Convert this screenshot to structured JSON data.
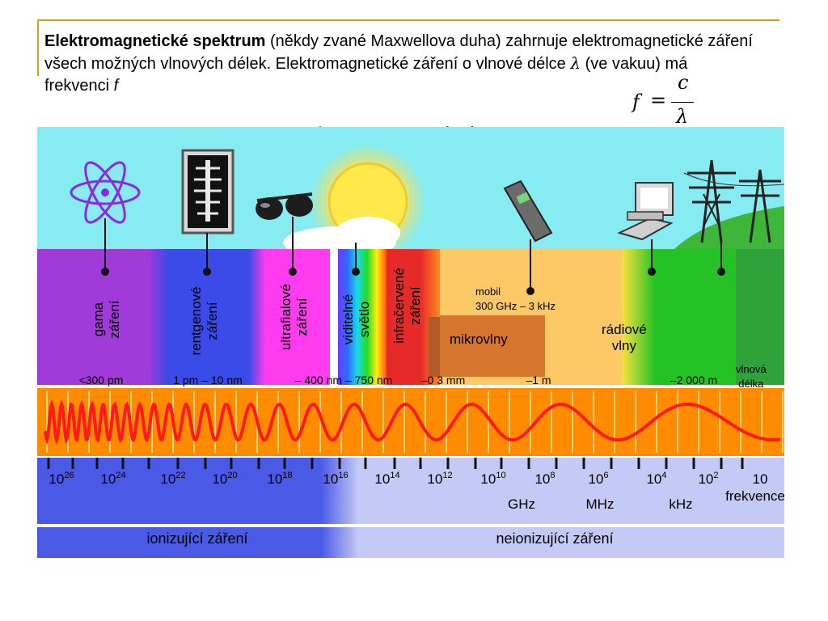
{
  "intro": {
    "term": "Elektromagnetické spektrum",
    "rest1": " (někdy zvané Maxwellova duha) zahrnuje elektromagnetické záření všech možných vlnových délek. Elektromagnetické záření o vlnové délce ",
    "lambda": "λ",
    "rest2": " (ve vakuu) má frekvenci ",
    "f": "f"
  },
  "formula": {
    "lhs": "f",
    "eq": "=",
    "num": "c",
    "den": "λ"
  },
  "subtitle": {
    "term": "Elektromagnetické spektrum",
    "rest": " dělíme podle vlnové délky:"
  },
  "bands": {
    "gamma": "gama\nzáření",
    "xray": "rentgenové\nzáření",
    "uv": "ultrafialové\nzáření",
    "visible": "viditelné\nsvětlo",
    "ir": "infračervené\nzáření",
    "mobile": "mobil\n300 GHz – 3 kHz",
    "microwave": "mikrovlny",
    "radio": "rádiové\nvlny",
    "wavelength_label": "vlnová\ndélka"
  },
  "wavelengths": [
    "<300 pm",
    "1 pm – 10 nm",
    "– 400 nm – 750 nm",
    "–0 3 mm",
    "–1 m",
    "–2 000 m"
  ],
  "frequencies": [
    {
      "base": "10",
      "exp": "26"
    },
    {
      "base": "10",
      "exp": "24"
    },
    {
      "base": "10",
      "exp": "22"
    },
    {
      "base": "10",
      "exp": "20"
    },
    {
      "base": "10",
      "exp": "18"
    },
    {
      "base": "10",
      "exp": "16"
    },
    {
      "base": "10",
      "exp": "14"
    },
    {
      "base": "10",
      "exp": "12"
    },
    {
      "base": "10",
      "exp": "10"
    },
    {
      "base": "10",
      "exp": "8"
    },
    {
      "base": "10",
      "exp": "6"
    },
    {
      "base": "10",
      "exp": "4"
    },
    {
      "base": "10",
      "exp": "2"
    },
    {
      "base": "10",
      "exp": ""
    }
  ],
  "units": {
    "ghz": "GHz",
    "mhz": "MHz",
    "khz": "kHz",
    "freq_label": "frekvence"
  },
  "ionizing": "ionizující záření",
  "nonionizing": "neionizující záření"
}
